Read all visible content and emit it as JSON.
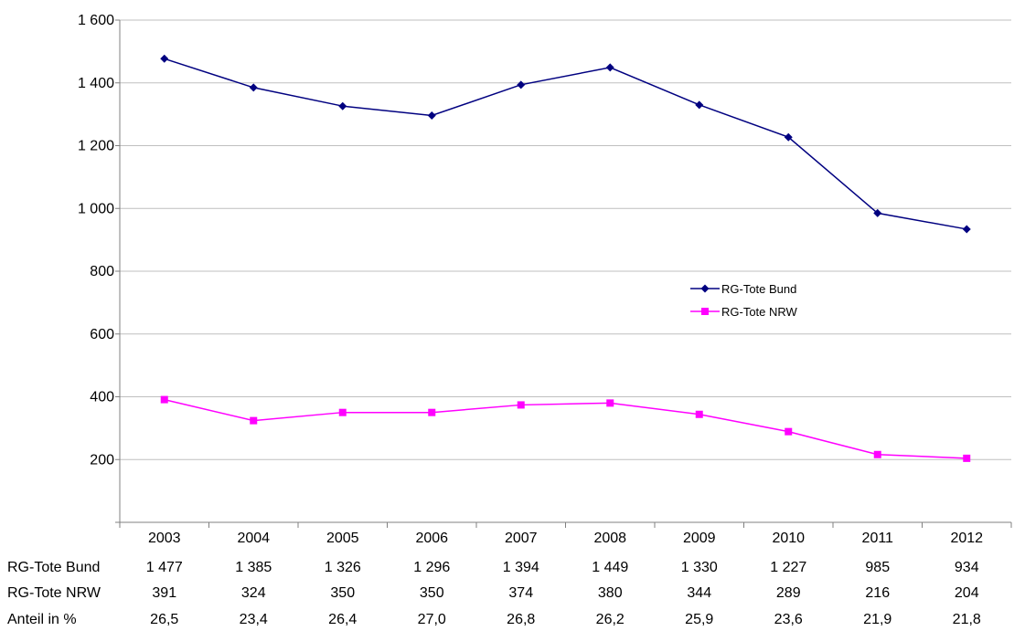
{
  "chart_data": {
    "type": "line",
    "categories": [
      "2003",
      "2004",
      "2005",
      "2006",
      "2007",
      "2008",
      "2009",
      "2010",
      "2011",
      "2012"
    ],
    "series": [
      {
        "name": "RG-Tote Bund",
        "values": [
          1477,
          1385,
          1326,
          1296,
          1394,
          1449,
          1330,
          1227,
          985,
          934
        ],
        "color": "#000080",
        "marker": "diamond"
      },
      {
        "name": "RG-Tote NRW",
        "values": [
          391,
          324,
          350,
          350,
          374,
          380,
          344,
          289,
          216,
          204
        ],
        "color": "#ff00ff",
        "marker": "square"
      }
    ],
    "y_ticks": [
      "200",
      "400",
      "600",
      "800",
      "1 000",
      "1 200",
      "1 400",
      "1 600"
    ],
    "ylim": [
      0,
      1600
    ],
    "grid": true,
    "legend_position": "center-right",
    "data_table": {
      "rows": [
        {
          "label": "RG-Tote Bund",
          "cells": [
            "1 477",
            "1 385",
            "1 326",
            "1 296",
            "1 394",
            "1 449",
            "1 330",
            "1 227",
            "985",
            "934"
          ]
        },
        {
          "label": "RG-Tote NRW",
          "cells": [
            "391",
            "324",
            "350",
            "350",
            "374",
            "380",
            "344",
            "289",
            "216",
            "204"
          ]
        },
        {
          "label": "Anteil in %",
          "cells": [
            "26,5",
            "23,4",
            "26,4",
            "27,0",
            "26,8",
            "26,2",
            "25,9",
            "23,6",
            "21,9",
            "21,8"
          ]
        }
      ]
    }
  }
}
